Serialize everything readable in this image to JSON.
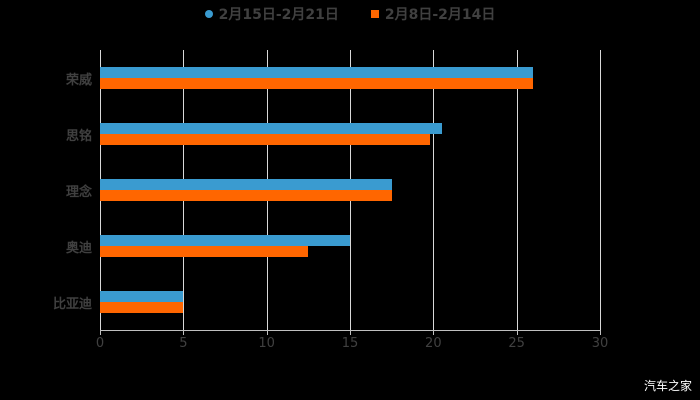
{
  "chart_data": {
    "type": "bar",
    "orientation": "horizontal",
    "title": "",
    "categories": [
      "荣威",
      "思铭",
      "理念",
      "奥迪",
      "比亚迪"
    ],
    "series": [
      {
        "name": "2月15日-2月21日",
        "color": "#3a9bd0",
        "values": [
          26,
          20.5,
          17.5,
          15,
          5
        ]
      },
      {
        "name": "2月8日-2月14日",
        "color": "#ff6600",
        "values": [
          26,
          19.8,
          17.5,
          12.5,
          5
        ]
      }
    ],
    "xlabel": "",
    "ylabel": "",
    "xlim": [
      0,
      30
    ],
    "xticks": [
      "0",
      "5",
      "10",
      "15",
      "20",
      "25",
      "30"
    ],
    "grid": true,
    "legend_position": "top"
  },
  "legend": {
    "series1": "2月15日-2月21日",
    "series2": "2月8日-2月14日"
  },
  "watermark": "汽车之家"
}
